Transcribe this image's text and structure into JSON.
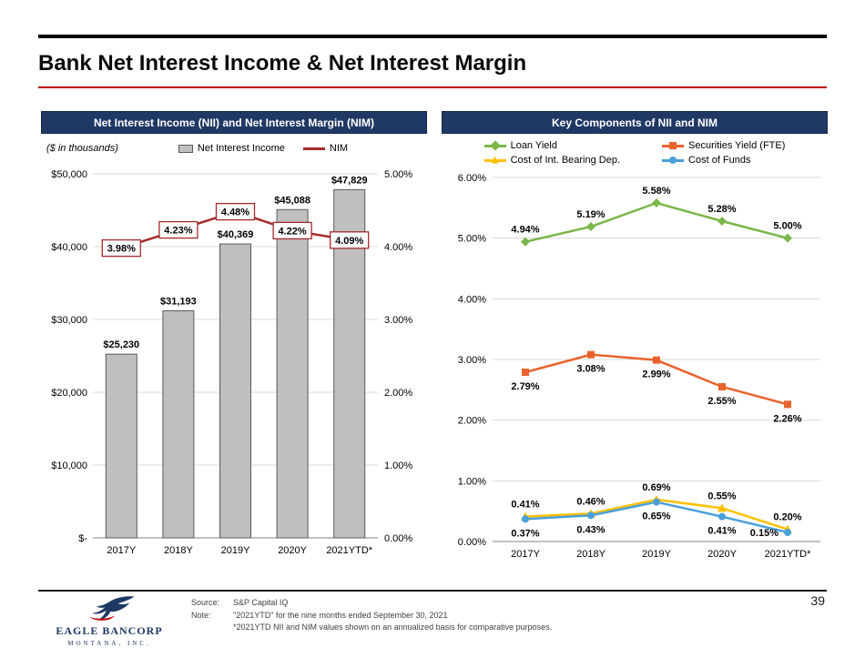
{
  "page": {
    "title": "Bank Net Interest Income & Net Interest Margin",
    "page_number": "39"
  },
  "footer": {
    "source_label": "Source:",
    "source_text": "S&P Capital IQ",
    "note_label": "Note:",
    "note_line1": "\"2021YTD\" for the nine months ended September 30, 2021",
    "note_line2": "*2021YTD NII and NIM values shown on an annualized basis for comparative purposes.",
    "logo_name": "EAGLE BANCORP",
    "logo_sub": "MONTANA, INC."
  },
  "chart_data": [
    {
      "type": "bar",
      "title": "Net Interest Income (NII) and Net Interest Margin (NIM)",
      "units_note": "($ in thousands)",
      "categories": [
        "2017Y",
        "2018Y",
        "2019Y",
        "2020Y",
        "2021YTD*"
      ],
      "series": [
        {
          "name": "Net Interest Income",
          "chart": "bar",
          "axis": "left",
          "color": "#BFBFBF",
          "values": [
            25230,
            31193,
            40369,
            45088,
            47829
          ],
          "labels": [
            "$25,230",
            "$31,193",
            "$40,369",
            "$45,088",
            "$47,829"
          ]
        },
        {
          "name": "NIM",
          "chart": "line",
          "axis": "right",
          "color": "#A52A2A",
          "values": [
            3.98,
            4.23,
            4.48,
            4.22,
            4.09
          ],
          "labels": [
            "3.98%",
            "4.23%",
            "4.48%",
            "4.22%",
            "4.09%"
          ]
        }
      ],
      "left_axis": {
        "min": 0,
        "max": 50000,
        "ticks": [
          "$-",
          "$10,000",
          "$20,000",
          "$30,000",
          "$40,000",
          "$50,000"
        ]
      },
      "right_axis": {
        "min": 0,
        "max": 5,
        "ticks": [
          "0.00%",
          "1.00%",
          "2.00%",
          "3.00%",
          "4.00%",
          "5.00%"
        ]
      },
      "grid": true,
      "legend_position": "top"
    },
    {
      "type": "line",
      "title": "Key Components of NII and NIM",
      "categories": [
        "2017Y",
        "2018Y",
        "2019Y",
        "2020Y",
        "2021YTD*"
      ],
      "series": [
        {
          "name": "Loan Yield",
          "color": "#7AB648",
          "marker": "diamond",
          "label_pos": "above",
          "values": [
            4.94,
            5.19,
            5.58,
            5.28,
            5.0
          ],
          "labels": [
            "4.94%",
            "5.19%",
            "5.58%",
            "5.28%",
            "5.00%"
          ]
        },
        {
          "name": "Securities Yield (FTE)",
          "color": "#E8632C",
          "marker": "square",
          "label_pos": "below",
          "values": [
            2.79,
            3.08,
            2.99,
            2.55,
            2.26
          ],
          "labels": [
            "2.79%",
            "3.08%",
            "2.99%",
            "2.55%",
            "2.26%"
          ]
        },
        {
          "name": "Cost of Int. Bearing Dep.",
          "color": "#FFC000",
          "marker": "triangle",
          "label_pos": "above",
          "values": [
            0.41,
            0.46,
            0.69,
            0.55,
            0.2
          ],
          "labels": [
            "0.41%",
            "0.46%",
            "0.69%",
            "0.55%",
            "0.20%"
          ]
        },
        {
          "name": "Cost of Funds",
          "color": "#4AA0DB",
          "marker": "circle",
          "label_pos": "below",
          "label_pos_per_point": [
            "below",
            "below",
            "below",
            "below",
            "left"
          ],
          "values": [
            0.37,
            0.43,
            0.65,
            0.41,
            0.15
          ],
          "labels": [
            "0.37%",
            "0.43%",
            "0.65%",
            "0.41%",
            "0.15%"
          ]
        }
      ],
      "y_axis": {
        "min": 0,
        "max": 6,
        "ticks": [
          "0.00%",
          "1.00%",
          "2.00%",
          "3.00%",
          "4.00%",
          "5.00%",
          "6.00%"
        ]
      },
      "grid": true,
      "legend_position": "top"
    }
  ]
}
